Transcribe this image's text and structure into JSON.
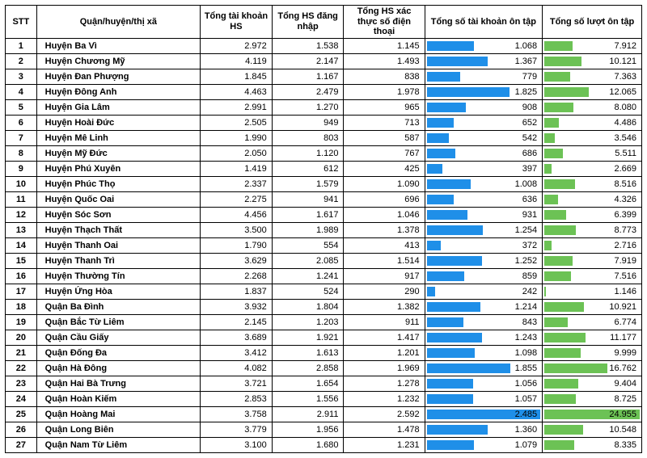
{
  "colors": {
    "bar_blue": "#1f8fe8",
    "bar_green": "#6cc255",
    "bold_text": "#000000"
  },
  "columns": [
    "STT",
    "Quận/huyện/thị xã",
    "Tổng tài khoản HS",
    "Tổng HS đăng nhập",
    "Tổng HS xác thực số điện thoại",
    "Tổng số tài khoản ôn tập",
    "Tổng số lượt ôn tập"
  ],
  "bar_max": {
    "col5": 2485,
    "col6": 24955
  },
  "rows": [
    {
      "stt": "1",
      "name": "Huyện Ba Vì",
      "c2": "2.972",
      "c3": "1.538",
      "c4": "1.145",
      "c5": 1068,
      "c5s": "1.068",
      "c6": 7912,
      "c6s": "7.912"
    },
    {
      "stt": "2",
      "name": "Huyện Chương Mỹ",
      "c2": "4.119",
      "c3": "2.147",
      "c4": "1.493",
      "c5": 1367,
      "c5s": "1.367",
      "c6": 10121,
      "c6s": "10.121"
    },
    {
      "stt": "3",
      "name": "Huyện Đan Phượng",
      "c2": "1.845",
      "c3": "1.167",
      "c4": "838",
      "c5": 779,
      "c5s": "779",
      "c6": 7363,
      "c6s": "7.363"
    },
    {
      "stt": "4",
      "name": "Huyện Đông Anh",
      "c2": "4.463",
      "c3": "2.479",
      "c4": "1.978",
      "c5": 1825,
      "c5s": "1.825",
      "c6": 12065,
      "c6s": "12.065"
    },
    {
      "stt": "5",
      "name": "Huyện Gia Lâm",
      "c2": "2.991",
      "c3": "1.270",
      "c4": "965",
      "c5": 908,
      "c5s": "908",
      "c6": 8080,
      "c6s": "8.080"
    },
    {
      "stt": "6",
      "name": "Huyện Hoài Đức",
      "c2": "2.505",
      "c3": "949",
      "c4": "713",
      "c5": 652,
      "c5s": "652",
      "c6": 4486,
      "c6s": "4.486"
    },
    {
      "stt": "7",
      "name": "Huyện Mê Linh",
      "c2": "1.990",
      "c3": "803",
      "c4": "587",
      "c5": 542,
      "c5s": "542",
      "c6": 3546,
      "c6s": "3.546"
    },
    {
      "stt": "8",
      "name": "Huyện Mỹ Đức",
      "c2": "2.050",
      "c3": "1.120",
      "c4": "767",
      "c5": 686,
      "c5s": "686",
      "c6": 5511,
      "c6s": "5.511"
    },
    {
      "stt": "9",
      "name": "Huyện Phú Xuyên",
      "c2": "1.419",
      "c3": "612",
      "c4": "425",
      "c5": 397,
      "c5s": "397",
      "c6": 2669,
      "c6s": "2.669"
    },
    {
      "stt": "10",
      "name": "Huyện Phúc Thọ",
      "c2": "2.337",
      "c3": "1.579",
      "c4": "1.090",
      "c5": 1008,
      "c5s": "1.008",
      "c6": 8516,
      "c6s": "8.516"
    },
    {
      "stt": "11",
      "name": "Huyện Quốc Oai",
      "c2": "2.275",
      "c3": "941",
      "c4": "696",
      "c5": 636,
      "c5s": "636",
      "c6": 4326,
      "c6s": "4.326"
    },
    {
      "stt": "12",
      "name": "Huyện Sóc Sơn",
      "c2": "4.456",
      "c3": "1.617",
      "c4": "1.046",
      "c5": 931,
      "c5s": "931",
      "c6": 6399,
      "c6s": "6.399"
    },
    {
      "stt": "13",
      "name": "Huyện Thạch Thất",
      "c2": "3.500",
      "c3": "1.989",
      "c4": "1.378",
      "c5": 1254,
      "c5s": "1.254",
      "c6": 8773,
      "c6s": "8.773"
    },
    {
      "stt": "14",
      "name": "Huyện Thanh Oai",
      "c2": "1.790",
      "c3": "554",
      "c4": "413",
      "c5": 372,
      "c5s": "372",
      "c6": 2716,
      "c6s": "2.716"
    },
    {
      "stt": "15",
      "name": "Huyện Thanh Trì",
      "c2": "3.629",
      "c3": "2.085",
      "c4": "1.514",
      "c5": 1252,
      "c5s": "1.252",
      "c6": 7919,
      "c6s": "7.919"
    },
    {
      "stt": "16",
      "name": "Huyện Thường Tín",
      "c2": "2.268",
      "c3": "1.241",
      "c4": "917",
      "c5": 859,
      "c5s": "859",
      "c6": 7516,
      "c6s": "7.516"
    },
    {
      "stt": "17",
      "name": "Huyện Ứng Hòa",
      "c2": "1.837",
      "c3": "524",
      "c4": "290",
      "c5": 242,
      "c5s": "242",
      "c6": 1146,
      "c6s": "1.146"
    },
    {
      "stt": "18",
      "name": "Quận Ba Đình",
      "c2": "3.932",
      "c3": "1.804",
      "c4": "1.382",
      "c5": 1214,
      "c5s": "1.214",
      "c6": 10921,
      "c6s": "10.921"
    },
    {
      "stt": "19",
      "name": "Quận Bắc Từ Liêm",
      "c2": "2.145",
      "c3": "1.203",
      "c4": "911",
      "c5": 843,
      "c5s": "843",
      "c6": 6774,
      "c6s": "6.774"
    },
    {
      "stt": "20",
      "name": "Quận Cầu Giấy",
      "c2": "3.689",
      "c3": "1.921",
      "c4": "1.417",
      "c5": 1243,
      "c5s": "1.243",
      "c6": 11177,
      "c6s": "11.177"
    },
    {
      "stt": "21",
      "name": "Quận Đống Đa",
      "c2": "3.412",
      "c3": "1.613",
      "c4": "1.201",
      "c5": 1098,
      "c5s": "1.098",
      "c6": 9999,
      "c6s": "9.999"
    },
    {
      "stt": "22",
      "name": "Quận Hà Đông",
      "c2": "4.082",
      "c3": "2.858",
      "c4": "1.969",
      "c5": 1855,
      "c5s": "1.855",
      "c6": 16762,
      "c6s": "16.762"
    },
    {
      "stt": "23",
      "name": "Quận Hai Bà Trưng",
      "c2": "3.721",
      "c3": "1.654",
      "c4": "1.278",
      "c5": 1056,
      "c5s": "1.056",
      "c6": 9404,
      "c6s": "9.404"
    },
    {
      "stt": "24",
      "name": "Quận Hoàn Kiếm",
      "c2": "2.853",
      "c3": "1.556",
      "c4": "1.232",
      "c5": 1057,
      "c5s": "1.057",
      "c6": 8725,
      "c6s": "8.725"
    },
    {
      "stt": "25",
      "name": "Quận Hoàng Mai",
      "c2": "3.758",
      "c3": "2.911",
      "c4": "2.592",
      "c5": 2485,
      "c5s": "2.485",
      "c6": 24955,
      "c6s": "24.955"
    },
    {
      "stt": "26",
      "name": "Quận Long Biên",
      "c2": "3.779",
      "c3": "1.956",
      "c4": "1.478",
      "c5": 1360,
      "c5s": "1.360",
      "c6": 10548,
      "c6s": "10.548"
    },
    {
      "stt": "27",
      "name": "Quận Nam Từ Liêm",
      "c2": "3.100",
      "c3": "1.680",
      "c4": "1.231",
      "c5": 1079,
      "c5s": "1.079",
      "c6": 8335,
      "c6s": "8.335"
    }
  ]
}
